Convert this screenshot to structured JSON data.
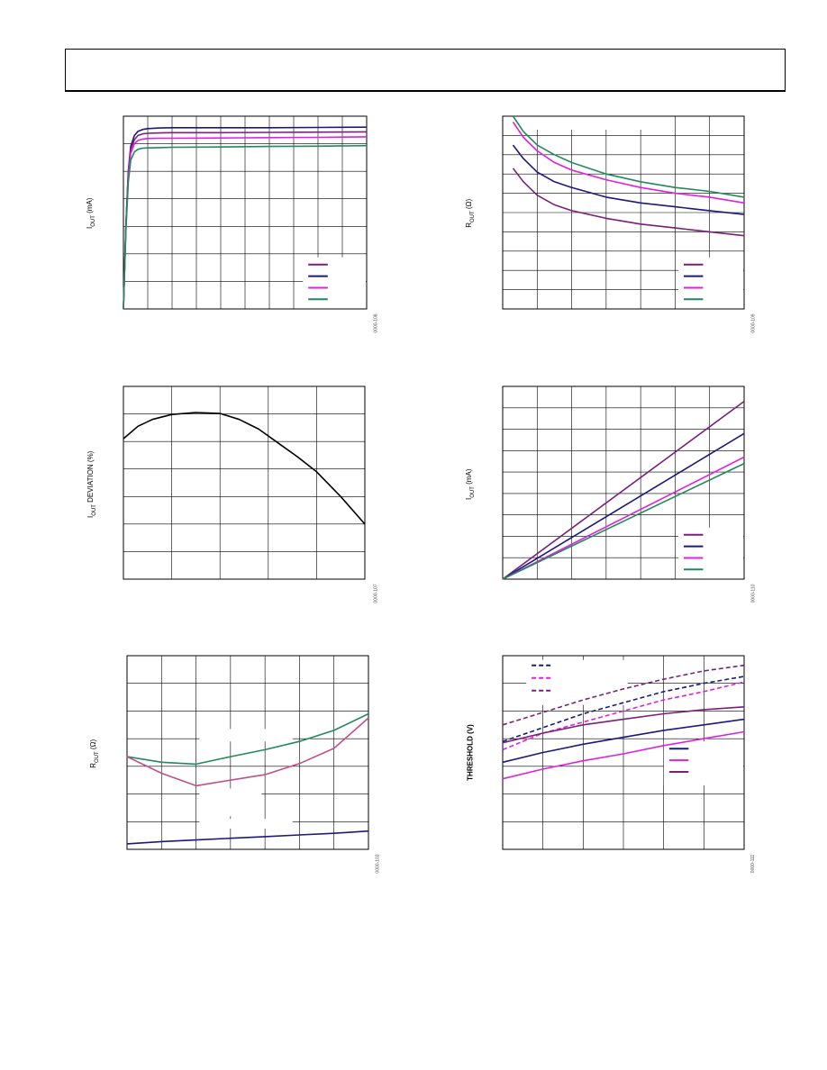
{
  "page": {
    "header_title": ""
  },
  "colors": {
    "purple": "#7a1f7a",
    "navy": "#1a1a7e",
    "magenta": "#e020e0",
    "green": "#1f8a5a",
    "mauve": "#c0508a",
    "black": "#000000"
  },
  "chart_data": [
    {
      "id": "c1",
      "type": "line",
      "ylabel_main": "I",
      "ylabel_sub": "OUT",
      "ylabel_unit": " (mA)",
      "figure_id": "0000-108",
      "x_divisions": 10,
      "y_divisions": 7,
      "xlim": [
        0,
        10
      ],
      "ylim": [
        0,
        7
      ],
      "legend": [
        "",
        "",
        "",
        ""
      ],
      "series": [
        {
          "color": "navy",
          "x": [
            0,
            0.1,
            0.2,
            0.3,
            0.45,
            0.6,
            0.8,
            1.0,
            1.5,
            2,
            4,
            6,
            8,
            10
          ],
          "y": [
            0,
            3.0,
            5.0,
            5.9,
            6.3,
            6.45,
            6.52,
            6.55,
            6.57,
            6.58,
            6.58,
            6.58,
            6.59,
            6.6
          ]
        },
        {
          "color": "purple",
          "x": [
            0,
            0.1,
            0.2,
            0.3,
            0.45,
            0.6,
            0.8,
            1.0,
            1.5,
            2,
            4,
            6,
            8,
            10
          ],
          "y": [
            0,
            3.0,
            4.9,
            5.8,
            6.15,
            6.3,
            6.36,
            6.38,
            6.39,
            6.4,
            6.4,
            6.41,
            6.42,
            6.43
          ]
        },
        {
          "color": "magenta",
          "x": [
            0,
            0.1,
            0.2,
            0.3,
            0.45,
            0.6,
            0.8,
            1.0,
            1.5,
            2,
            4,
            6,
            8,
            10
          ],
          "y": [
            0,
            2.9,
            4.8,
            5.65,
            6.0,
            6.12,
            6.17,
            6.19,
            6.2,
            6.2,
            6.21,
            6.22,
            6.23,
            6.25
          ]
        },
        {
          "color": "green",
          "x": [
            0,
            0.1,
            0.2,
            0.3,
            0.45,
            0.6,
            0.8,
            1.0,
            1.5,
            2,
            4,
            6,
            8,
            10
          ],
          "y": [
            0,
            2.8,
            4.6,
            5.4,
            5.7,
            5.8,
            5.84,
            5.85,
            5.86,
            5.87,
            5.88,
            5.9,
            5.91,
            5.93
          ]
        }
      ]
    },
    {
      "id": "c2",
      "type": "line",
      "ylabel_main": "R",
      "ylabel_sub": "OUT",
      "ylabel_unit": " (Ω)",
      "figure_id": "0000-109",
      "x_divisions": 7,
      "y_divisions": 10,
      "xlim": [
        0,
        7
      ],
      "ylim": [
        0,
        10
      ],
      "legend": [
        "",
        "",
        "",
        ""
      ],
      "series": [
        {
          "color": "purple",
          "x": [
            0.3,
            0.6,
            1.0,
            1.5,
            2,
            3,
            4,
            5,
            6,
            7
          ],
          "y": [
            7.3,
            6.6,
            5.9,
            5.4,
            5.1,
            4.7,
            4.4,
            4.2,
            4.0,
            3.8
          ]
        },
        {
          "color": "navy",
          "x": [
            0.3,
            0.6,
            1.0,
            1.5,
            2,
            3,
            4,
            5,
            6,
            7
          ],
          "y": [
            8.5,
            7.8,
            7.1,
            6.6,
            6.3,
            5.8,
            5.5,
            5.3,
            5.1,
            4.9
          ]
        },
        {
          "color": "magenta",
          "x": [
            0.3,
            0.6,
            1.0,
            1.5,
            2,
            3,
            4,
            5,
            6,
            7
          ],
          "y": [
            9.7,
            8.9,
            8.2,
            7.6,
            7.2,
            6.7,
            6.3,
            6.0,
            5.8,
            5.5
          ]
        },
        {
          "color": "green",
          "x": [
            0.3,
            0.6,
            1.0,
            1.5,
            2,
            3,
            4,
            5,
            6,
            7
          ],
          "y": [
            10.0,
            9.2,
            8.5,
            8.0,
            7.6,
            7.0,
            6.6,
            6.3,
            6.1,
            5.8
          ]
        }
      ]
    },
    {
      "id": "c3",
      "type": "line",
      "ylabel_main": "I",
      "ylabel_sub": "OUT",
      "ylabel_unit": " DEVIATION (%)",
      "figure_id": "0000-107",
      "x_divisions": 5,
      "y_divisions": 7,
      "xlim": [
        0,
        5
      ],
      "ylim": [
        0,
        7
      ],
      "legend": [],
      "series": [
        {
          "color": "black",
          "x": [
            0,
            0.3,
            0.6,
            1.0,
            1.5,
            2.0,
            2.4,
            2.8,
            3.2,
            3.6,
            4.0,
            4.5,
            5.0
          ],
          "y": [
            5.1,
            5.55,
            5.8,
            5.98,
            6.05,
            6.02,
            5.8,
            5.45,
            4.95,
            4.45,
            3.9,
            3.0,
            2.0
          ]
        }
      ]
    },
    {
      "id": "c4",
      "type": "line",
      "ylabel_main": "I",
      "ylabel_sub": "OUT",
      "ylabel_unit": " (mA)",
      "figure_id": "0000-110",
      "x_divisions": 7,
      "y_divisions": 9,
      "xlim": [
        0,
        7
      ],
      "ylim": [
        0,
        9
      ],
      "legend": [
        "",
        "",
        "",
        ""
      ],
      "series": [
        {
          "color": "purple",
          "x": [
            0,
            7
          ],
          "y": [
            0,
            8.3
          ]
        },
        {
          "color": "navy",
          "x": [
            0,
            7
          ],
          "y": [
            0,
            6.8
          ]
        },
        {
          "color": "magenta",
          "x": [
            0,
            7
          ],
          "y": [
            0,
            5.7
          ]
        },
        {
          "color": "green",
          "x": [
            0,
            7
          ],
          "y": [
            0,
            5.4
          ]
        }
      ]
    },
    {
      "id": "c5",
      "type": "line",
      "ylabel_main": "R",
      "ylabel_sub": "OUT",
      "ylabel_unit": " (Ω)",
      "figure_id": "0000-103",
      "x_divisions": 7,
      "y_divisions": 7,
      "xlim": [
        0,
        7
      ],
      "ylim": [
        0,
        7
      ],
      "legend": [],
      "series": [
        {
          "color": "green",
          "x": [
            0,
            1,
            2,
            3,
            4,
            5,
            6,
            7
          ],
          "y": [
            3.35,
            3.15,
            3.08,
            3.35,
            3.6,
            3.9,
            4.3,
            4.9
          ]
        },
        {
          "color": "mauve",
          "x": [
            0,
            1,
            2,
            3,
            4,
            5,
            6,
            7
          ],
          "y": [
            3.35,
            2.75,
            2.3,
            2.5,
            2.7,
            3.1,
            3.65,
            4.75
          ]
        },
        {
          "color": "navy",
          "x": [
            0,
            1,
            2,
            3,
            4,
            5,
            6,
            7
          ],
          "y": [
            0.2,
            0.28,
            0.34,
            0.4,
            0.46,
            0.52,
            0.58,
            0.66
          ]
        }
      ]
    },
    {
      "id": "c6",
      "type": "line",
      "ylabel_main": "THRESHOLD (V)",
      "ylabel_sub": "",
      "ylabel_unit": "",
      "figure_id": "0000-111",
      "x_divisions": 6,
      "y_divisions": 7,
      "xlim": [
        0,
        6
      ],
      "ylim": [
        0,
        7
      ],
      "legend_top": [
        "",
        "",
        ""
      ],
      "legend": [
        "",
        "",
        ""
      ],
      "series": [
        {
          "color": "purple",
          "dashed": true,
          "x": [
            0,
            1,
            2,
            3,
            4,
            5,
            6
          ],
          "y": [
            4.5,
            4.95,
            5.4,
            5.8,
            6.15,
            6.45,
            6.65
          ]
        },
        {
          "color": "navy",
          "dashed": true,
          "x": [
            0,
            1,
            2,
            3,
            4,
            5,
            6
          ],
          "y": [
            3.9,
            4.4,
            4.9,
            5.3,
            5.7,
            6.0,
            6.25
          ]
        },
        {
          "color": "magenta",
          "dashed": true,
          "x": [
            0,
            1,
            2,
            3,
            4,
            5,
            6
          ],
          "y": [
            3.6,
            4.2,
            4.6,
            5.0,
            5.4,
            5.7,
            6.05
          ]
        },
        {
          "color": "purple",
          "dashed": false,
          "x": [
            0,
            1,
            2,
            3,
            4,
            5,
            6
          ],
          "y": [
            3.85,
            4.2,
            4.5,
            4.7,
            4.9,
            5.05,
            5.15
          ]
        },
        {
          "color": "navy",
          "dashed": false,
          "x": [
            0,
            1,
            2,
            3,
            4,
            5,
            6
          ],
          "y": [
            3.15,
            3.5,
            3.8,
            4.05,
            4.3,
            4.5,
            4.7
          ]
        },
        {
          "color": "magenta",
          "dashed": false,
          "x": [
            0,
            1,
            2,
            3,
            4,
            5,
            6
          ],
          "y": [
            2.55,
            2.9,
            3.2,
            3.45,
            3.75,
            4.0,
            4.25
          ]
        }
      ]
    }
  ]
}
